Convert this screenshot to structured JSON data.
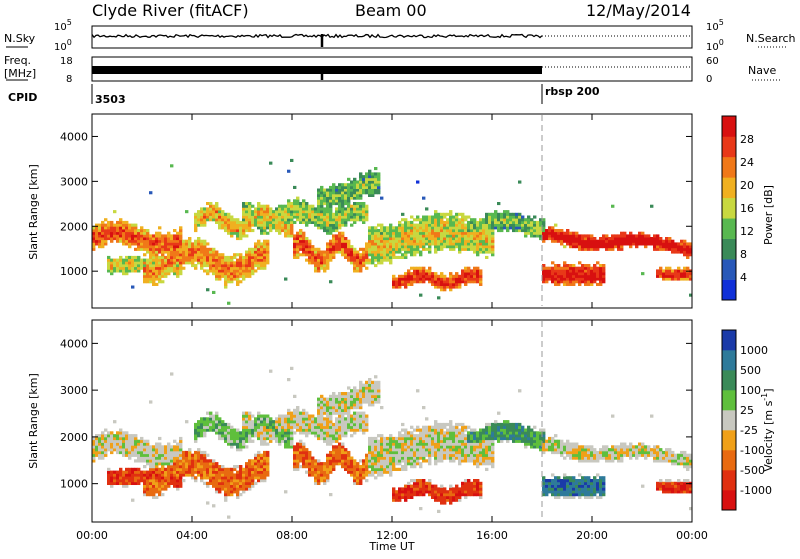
{
  "header": {
    "station": "Clyde River (fitACF)",
    "beam": "Beam 00",
    "date": "12/May/2014"
  },
  "noise_panel": {
    "left_label": "N.Sky",
    "right_label": "N.Search",
    "left_ticks": [
      "10^5",
      "10^0"
    ],
    "right_ticks": [
      "10^5",
      "10^0"
    ]
  },
  "freq_panel": {
    "left_label_1": "Freq.",
    "left_label_2": "[MHz]",
    "right_label": "Nave",
    "left_ticks": [
      "18",
      "8"
    ],
    "right_ticks": [
      "60",
      "0"
    ]
  },
  "cpid_panel": {
    "label": "CPID",
    "programs": [
      {
        "id": "3503",
        "start_hour": 0
      },
      {
        "id": "rbsp 200",
        "start_hour": 18
      }
    ]
  },
  "colors": {
    "power": [
      "#1030d8",
      "#2858b8",
      "#3a8a58",
      "#58b850",
      "#c8d840",
      "#f0b020",
      "#f07818",
      "#e83818",
      "#d81010"
    ],
    "velocity": [
      "#1a3aa8",
      "#2e7a9a",
      "#3a8a58",
      "#5fbf3c",
      "#c8c8c0",
      "#f0a018",
      "#e86a10",
      "#e03010",
      "#d81010"
    ]
  },
  "chart_data": [
    {
      "type": "heatmap",
      "name": "power",
      "ylabel": "Slant Range [km]",
      "ylim": [
        180,
        4500
      ],
      "yticks": [
        1000,
        2000,
        3000,
        4000
      ],
      "xlim": [
        0,
        24
      ],
      "x_ticks": [
        "00:00",
        "04:00",
        "08:00",
        "12:00",
        "16:00",
        "20:00",
        "00:00"
      ],
      "colorbar_label": "Power [dB]",
      "colorbar_ticks": [
        "28",
        "24",
        "20",
        "16",
        "12",
        "8",
        "4"
      ],
      "colorbar_range": [
        0,
        32
      ],
      "marker_hour": 18
    },
    {
      "type": "heatmap",
      "name": "velocity",
      "ylabel": "Slant Range [km]",
      "ylim": [
        180,
        4500
      ],
      "yticks": [
        1000,
        2000,
        3000,
        4000
      ],
      "xlim": [
        0,
        24
      ],
      "x_ticks": [
        "00:00",
        "04:00",
        "08:00",
        "12:00",
        "16:00",
        "20:00",
        "00:00"
      ],
      "xlabel": "Time UT",
      "colorbar_label": "Velocity [m s^-1]",
      "colorbar_ticks": [
        "1000",
        "500",
        "100",
        "25",
        "-25",
        "-100",
        "-500",
        "-1000"
      ],
      "marker_hour": 18
    }
  ]
}
